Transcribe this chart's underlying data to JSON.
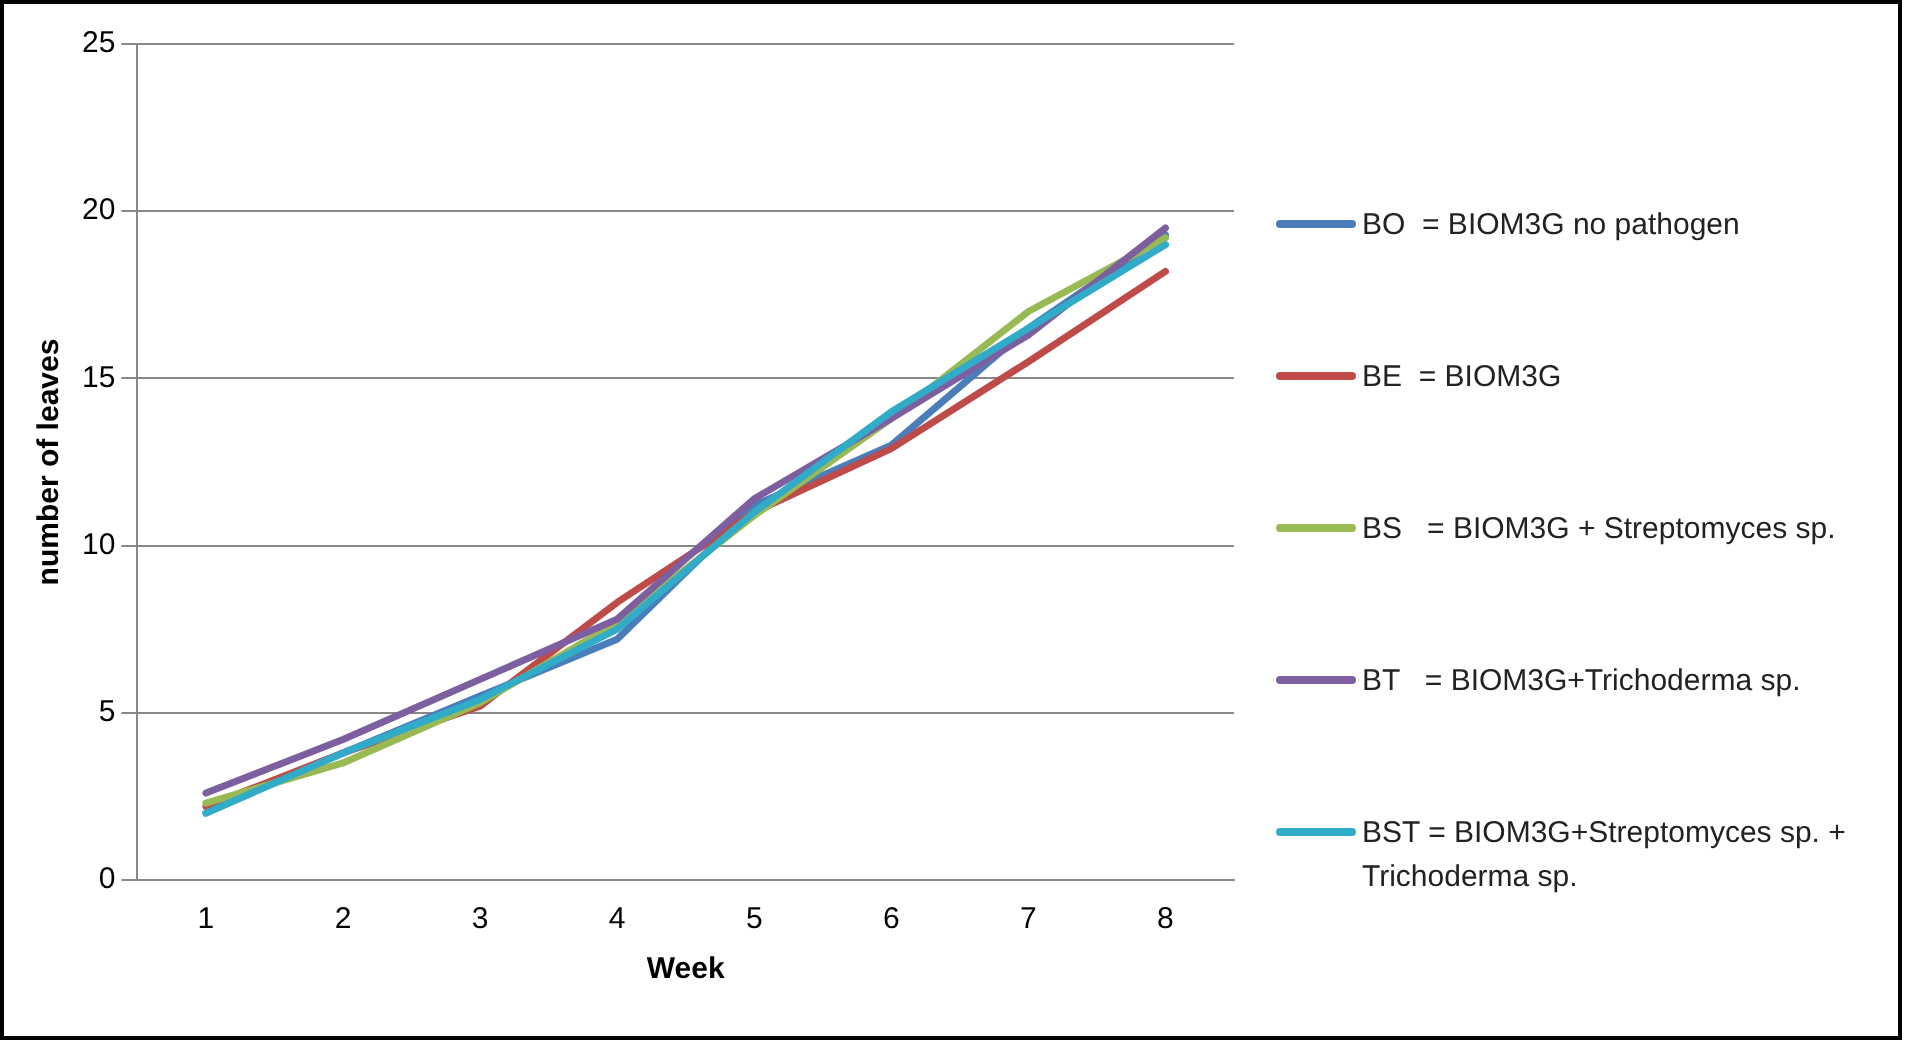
{
  "chart_data": {
    "type": "line",
    "xlabel": "Week",
    "ylabel": "number of leaves",
    "categories": [
      "1",
      "2",
      "3",
      "4",
      "5",
      "6",
      "7",
      "8"
    ],
    "ylim": [
      0,
      25
    ],
    "yticks": [
      0,
      5,
      10,
      15,
      20,
      25
    ],
    "grid": "y",
    "legend": "right",
    "marker": "none",
    "line_style": "solid",
    "series": [
      {
        "name": "BO  = BIOM3G no pathogen",
        "color": "#4a7ebb",
        "values": [
          2.0,
          3.8,
          5.5,
          7.2,
          11.2,
          13.0,
          16.5,
          19.3
        ]
      },
      {
        "name": "BE  = BIOM3G",
        "color": "#be4b48",
        "values": [
          2.2,
          3.8,
          5.2,
          8.3,
          11.0,
          12.9,
          15.5,
          18.2
        ]
      },
      {
        "name": "BS   = BIOM3G + Streptomyces sp.",
        "color": "#98b954",
        "values": [
          2.3,
          3.5,
          5.3,
          7.7,
          10.9,
          13.8,
          17.0,
          19.2
        ]
      },
      {
        "name": "BT   = BIOM3G+Trichoderma sp.",
        "color": "#7d5fa0",
        "values": [
          2.6,
          4.2,
          6.0,
          7.8,
          11.4,
          13.8,
          16.3,
          19.5
        ]
      },
      {
        "name": "BST = BIOM3G+Streptomyces sp. + Trichoderma sp.",
        "color": "#31acc8",
        "values": [
          2.0,
          3.8,
          5.4,
          7.5,
          11.0,
          14.0,
          16.5,
          19.0
        ]
      }
    ]
  }
}
